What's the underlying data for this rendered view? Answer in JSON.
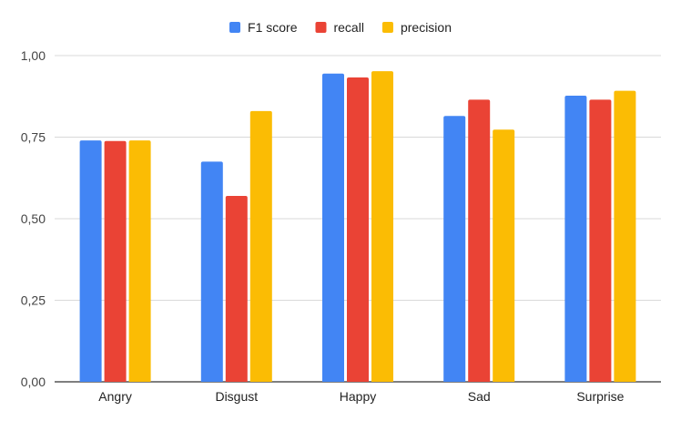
{
  "chart_data": {
    "type": "bar",
    "categories": [
      "Angry",
      "Disgust",
      "Happy",
      "Sad",
      "Surprise"
    ],
    "series": [
      {
        "name": "F1 score",
        "color": "#4285F4",
        "values": [
          0.74,
          0.675,
          0.945,
          0.815,
          0.877
        ]
      },
      {
        "name": "recall",
        "color": "#EA4335",
        "values": [
          0.738,
          0.57,
          0.933,
          0.865,
          0.865
        ]
      },
      {
        "name": "precision",
        "color": "#FBBC04",
        "values": [
          0.74,
          0.83,
          0.952,
          0.773,
          0.892
        ]
      }
    ],
    "ylim": [
      0,
      1
    ],
    "yticks": [
      0,
      0.25,
      0.5,
      0.75,
      1
    ],
    "ytick_labels": [
      "0,00",
      "0,25",
      "0,50",
      "0,75",
      "1,00"
    ],
    "grid": true,
    "legend_position": "top-center"
  }
}
